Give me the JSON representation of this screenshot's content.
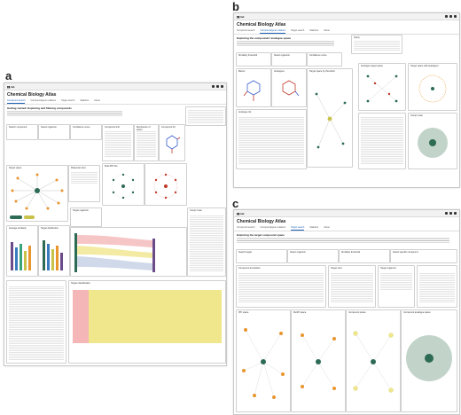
{
  "labels": {
    "a": "a",
    "b": "b",
    "c": "c"
  },
  "app": {
    "title": "Chemical Biology Atlas",
    "tabs_a": [
      "Compound search",
      "Compound/gene relations",
      "Target search",
      "Statistics",
      "About"
    ],
    "tabs_b": [
      "Compound search",
      "Compound/gene relations",
      "Target search",
      "Statistics",
      "About"
    ],
    "tabs_c": [
      "Compound search",
      "Compound/gene relations",
      "Target search",
      "Statistics",
      "About"
    ],
    "intro_a": "Getting started: Exploring and filtering compounds",
    "intro_b": "Exploring the compounds' analogue space",
    "intro_c": "Exploring the target compound space"
  },
  "cards_a": [
    "Search compound",
    "Select organism",
    "Confidence score",
    "Compound info",
    "Mechanism of action",
    "Compound hit",
    "Target space",
    "Molecular docs",
    "Multi PPI hits",
    "Average similarity",
    "Target distribution",
    "Target organism",
    "Group mean",
    "Target classification"
  ],
  "cards_b": [
    "Similarity threshold",
    "Select organism",
    "Confidence score",
    "Query",
    "Basics",
    "Analogues",
    "Target space by threshold",
    "Analogue list",
    "Analogue target space",
    "Target space with analogues",
    "Group mean"
  ],
  "cards_c": [
    "Search target",
    "Select organism",
    "Similarity threshold",
    "Select specific compound",
    "Compound annotation",
    "Target card",
    "Target organism",
    "PPI space",
    "MeSH space",
    "Compound space",
    "Compound analogue space"
  ],
  "colors": {
    "accent": "#1a5fb4",
    "green": "#2e6b55",
    "orange": "#e8952e",
    "yellow": "#f0e68c",
    "pink": "#f4b6b6",
    "red": "#c0392b"
  }
}
